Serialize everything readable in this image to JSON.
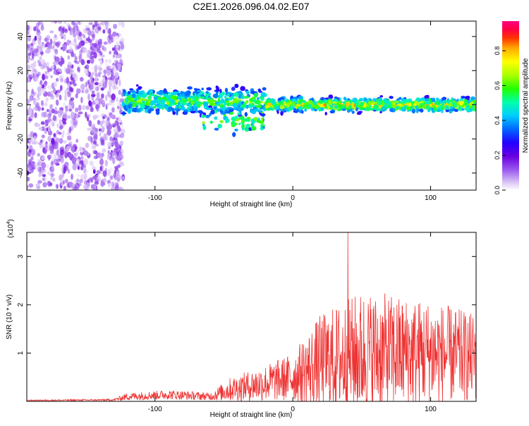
{
  "title": "C2E1.2026.096.04.02.E07",
  "chart_data": [
    {
      "type": "heatmap",
      "xlabel": "Height of straight line (km)",
      "ylabel": "Frequency (Hz)",
      "xlim": [
        -193,
        133
      ],
      "ylim": [
        -50,
        49
      ],
      "x_ticks": [
        -100,
        0,
        100
      ],
      "y_ticks": [
        -40,
        -20,
        0,
        20,
        40
      ],
      "colorbar": {
        "label": "Normalized spectral amplitude",
        "range": [
          0,
          0.97
        ],
        "ticks": [
          0.0,
          0.2,
          0.4,
          0.6,
          0.8
        ],
        "colors": [
          "#ffffff",
          "#d6bff5",
          "#9b59ee",
          "#6a00e0",
          "#2200ff",
          "#0066ff",
          "#00ccff",
          "#00ffaa",
          "#22ff00",
          "#aaff00",
          "#ffff00",
          "#ffaa00",
          "#ff3300",
          "#ff0044",
          "#ff0080"
        ]
      },
      "regions": [
        {
          "name": "noise",
          "x_range": [
            -193,
            -123
          ],
          "y_range": [
            -50,
            49
          ],
          "amplitude": [
            0.02,
            0.15
          ]
        },
        {
          "name": "signal-band",
          "x_range": [
            -123,
            133
          ],
          "center_freq_hz": 0,
          "half_width_hz": 8,
          "amplitude": [
            0.1,
            0.97
          ]
        }
      ]
    },
    {
      "type": "line",
      "xlabel": "Height of straight line (km)",
      "ylabel": "SNR (10 * v/v)",
      "y_multiplier": "(x10",
      "y_multiplier_exp": "4",
      "y_multiplier_close": ")",
      "xlim": [
        -193,
        133
      ],
      "ylim": [
        0,
        3.5
      ],
      "x_ticks": [
        -100,
        0,
        100
      ],
      "y_ticks": [
        1,
        2,
        3
      ],
      "color": "#ee3333",
      "profile": [
        {
          "x": -193,
          "mean": 0.02,
          "spread": 0.01
        },
        {
          "x": -130,
          "mean": 0.03,
          "spread": 0.02
        },
        {
          "x": -120,
          "mean": 0.1,
          "spread": 0.08
        },
        {
          "x": -90,
          "mean": 0.14,
          "spread": 0.1
        },
        {
          "x": -60,
          "mean": 0.1,
          "spread": 0.08
        },
        {
          "x": -45,
          "mean": 0.25,
          "spread": 0.25
        },
        {
          "x": -25,
          "mean": 0.35,
          "spread": 0.35
        },
        {
          "x": 0,
          "mean": 0.5,
          "spread": 0.5
        },
        {
          "x": 20,
          "mean": 0.8,
          "spread": 1.0
        },
        {
          "x": 50,
          "mean": 1.0,
          "spread": 1.3
        },
        {
          "x": 100,
          "mean": 1.0,
          "spread": 1.1
        },
        {
          "x": 133,
          "mean": 0.9,
          "spread": 0.9
        }
      ],
      "peak": {
        "x": 40,
        "y": 3.5
      }
    }
  ]
}
